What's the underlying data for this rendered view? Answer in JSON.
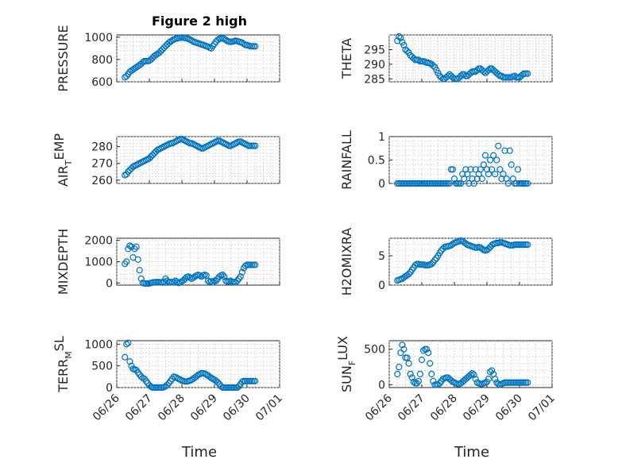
{
  "figure": {
    "title": "Figure 2 high",
    "marker_color": "#0072bd",
    "background": "#ffffff"
  },
  "chart_data": [
    {
      "type": "scatter",
      "ylabel": "PRESSURE",
      "title": "Figure 2 high",
      "xlim": [
        0,
        5
      ],
      "ylim": [
        600,
        1020
      ],
      "yticks": [
        600,
        800,
        1000
      ],
      "grid": true,
      "x": [
        0.25,
        0.3,
        0.35,
        0.4,
        0.45,
        0.5,
        0.55,
        0.6,
        0.65,
        0.7,
        0.75,
        0.8,
        0.85,
        0.9,
        0.95,
        1.0,
        1.05,
        1.1,
        1.15,
        1.2,
        1.25,
        1.3,
        1.35,
        1.4,
        1.45,
        1.5,
        1.55,
        1.6,
        1.65,
        1.7,
        1.75,
        1.8,
        1.85,
        1.9,
        1.95,
        2.0,
        2.05,
        2.1,
        2.15,
        2.2,
        2.25,
        2.3,
        2.35,
        2.4,
        2.45,
        2.5,
        2.55,
        2.6,
        2.65,
        2.7,
        2.75,
        2.8,
        2.85,
        2.9,
        2.95,
        3.0,
        3.05,
        3.1,
        3.15,
        3.2,
        3.25,
        3.3,
        3.35,
        3.4,
        3.45,
        3.5,
        3.55,
        3.6,
        3.65,
        3.7,
        3.75,
        3.8,
        3.85,
        3.9,
        3.95,
        4.0,
        4.05,
        4.1,
        4.15,
        4.2,
        4.25
      ],
      "y": [
        640,
        650,
        670,
        690,
        700,
        710,
        720,
        730,
        740,
        750,
        760,
        775,
        785,
        785,
        785,
        790,
        800,
        815,
        830,
        840,
        850,
        860,
        875,
        890,
        905,
        920,
        935,
        950,
        960,
        970,
        978,
        985,
        990,
        993,
        995,
        997,
        995,
        993,
        990,
        985,
        978,
        970,
        960,
        955,
        950,
        945,
        940,
        935,
        930,
        925,
        920,
        915,
        905,
        900,
        920,
        940,
        960,
        975,
        985,
        990,
        990,
        985,
        975,
        965,
        960,
        958,
        960,
        965,
        968,
        965,
        960,
        955,
        950,
        940,
        930,
        928,
        925,
        920,
        918,
        918,
        918
      ]
    },
    {
      "type": "scatter",
      "ylabel": "THETA",
      "xlim": [
        0,
        5
      ],
      "ylim": [
        284,
        300
      ],
      "yticks": [
        285,
        290,
        295
      ],
      "grid": true,
      "x": [
        0.25,
        0.3,
        0.35,
        0.4,
        0.45,
        0.5,
        0.55,
        0.6,
        0.65,
        0.7,
        0.75,
        0.8,
        0.85,
        0.9,
        0.95,
        1.0,
        1.05,
        1.1,
        1.15,
        1.2,
        1.25,
        1.3,
        1.35,
        1.4,
        1.45,
        1.5,
        1.55,
        1.6,
        1.65,
        1.7,
        1.75,
        1.8,
        1.85,
        1.9,
        1.95,
        2.0,
        2.05,
        2.1,
        2.15,
        2.2,
        2.25,
        2.3,
        2.35,
        2.4,
        2.45,
        2.5,
        2.55,
        2.6,
        2.65,
        2.7,
        2.75,
        2.8,
        2.85,
        2.9,
        2.95,
        3.0,
        3.05,
        3.1,
        3.15,
        3.2,
        3.25,
        3.3,
        3.35,
        3.4,
        3.45,
        3.5,
        3.55,
        3.6,
        3.65,
        3.7,
        3.75,
        3.8,
        3.85,
        3.9,
        3.95,
        4.0,
        4.05,
        4.1,
        4.15,
        4.2,
        4.25
      ],
      "y": [
        298,
        299.5,
        299,
        297.5,
        296.5,
        295,
        294.5,
        294,
        293,
        292.5,
        292,
        291.5,
        291.5,
        291.5,
        291,
        291,
        291,
        290.8,
        290.5,
        290.5,
        290.3,
        290,
        289.5,
        289,
        288,
        287,
        286,
        285.5,
        285,
        285,
        285.5,
        286,
        286.5,
        286,
        285.5,
        285,
        285,
        285,
        285.5,
        286,
        286.5,
        286.5,
        286,
        286,
        286.5,
        287,
        287.5,
        287.5,
        287.5,
        288,
        288.5,
        288.5,
        288,
        287.5,
        287,
        287.5,
        288,
        288.5,
        288.5,
        288,
        287.5,
        287,
        286.5,
        286,
        286,
        285.5,
        285.5,
        285.5,
        285.5,
        285.5,
        285.5,
        285.8,
        286,
        285.5,
        285.5,
        285.5,
        286,
        286.5,
        286.8,
        286.8,
        286.8
      ]
    },
    {
      "type": "scatter",
      "ylabel": "AIR_TEMP",
      "xlim": [
        0,
        5
      ],
      "ylim": [
        258,
        286
      ],
      "yticks": [
        260,
        270,
        280
      ],
      "grid": true,
      "x": [
        0.25,
        0.3,
        0.35,
        0.4,
        0.45,
        0.5,
        0.55,
        0.6,
        0.65,
        0.7,
        0.75,
        0.8,
        0.85,
        0.9,
        0.95,
        1.0,
        1.05,
        1.1,
        1.15,
        1.2,
        1.25,
        1.3,
        1.35,
        1.4,
        1.45,
        1.5,
        1.55,
        1.6,
        1.65,
        1.7,
        1.75,
        1.8,
        1.85,
        1.9,
        1.95,
        2.0,
        2.05,
        2.1,
        2.15,
        2.2,
        2.25,
        2.3,
        2.35,
        2.4,
        2.45,
        2.5,
        2.55,
        2.6,
        2.65,
        2.7,
        2.75,
        2.8,
        2.85,
        2.9,
        2.95,
        3.0,
        3.05,
        3.1,
        3.15,
        3.2,
        3.25,
        3.3,
        3.35,
        3.4,
        3.45,
        3.5,
        3.55,
        3.6,
        3.65,
        3.7,
        3.75,
        3.8,
        3.85,
        3.9,
        3.95,
        4.0,
        4.05,
        4.1,
        4.15,
        4.2,
        4.25
      ],
      "y": [
        263,
        263.5,
        265,
        266,
        267,
        268,
        268.5,
        269,
        269.5,
        270,
        270.5,
        271,
        271.5,
        272,
        272.5,
        273,
        274,
        275,
        276,
        277,
        278,
        278.5,
        279,
        279.5,
        280,
        280.5,
        281,
        281.5,
        282,
        282,
        282.5,
        283,
        283.5,
        284,
        284.5,
        284.5,
        284,
        283.5,
        283,
        282.5,
        282,
        282,
        281.5,
        281,
        280.5,
        280,
        279.5,
        279,
        279,
        279.5,
        280,
        280.5,
        281,
        281.5,
        282,
        282.5,
        283,
        283.5,
        283.5,
        283,
        282.5,
        282,
        281.5,
        281,
        280.5,
        280.5,
        281,
        281.5,
        282,
        282.5,
        283,
        283,
        282.5,
        282,
        281.5,
        281,
        280.5,
        280.5,
        280.5,
        280.5,
        280.5
      ]
    },
    {
      "type": "scatter",
      "ylabel": "RAINFALL",
      "xlim": [
        0,
        5
      ],
      "ylim": [
        0,
        1
      ],
      "yticks": [
        0,
        0.5,
        1
      ],
      "grid": true,
      "x": [
        0.25,
        0.3,
        0.35,
        0.4,
        0.45,
        0.5,
        0.55,
        0.6,
        0.65,
        0.7,
        0.75,
        0.8,
        0.85,
        0.9,
        0.95,
        1.0,
        1.05,
        1.1,
        1.15,
        1.2,
        1.25,
        1.3,
        1.35,
        1.4,
        1.45,
        1.5,
        1.55,
        1.6,
        1.65,
        1.7,
        1.75,
        1.8,
        1.85,
        1.9,
        1.95,
        2.0,
        2.05,
        2.1,
        2.15,
        2.2,
        2.25,
        2.3,
        2.35,
        2.4,
        2.45,
        2.5,
        2.55,
        2.6,
        2.65,
        2.7,
        2.75,
        2.8,
        2.85,
        2.9,
        2.95,
        3.0,
        3.05,
        3.1,
        3.15,
        3.2,
        3.25,
        3.3,
        3.35,
        3.4,
        3.45,
        3.5,
        3.55,
        3.6,
        3.65,
        3.7,
        3.75,
        3.8,
        3.85,
        3.9,
        3.95,
        4.0,
        4.05,
        4.1,
        4.15,
        4.2,
        4.25
      ],
      "y": [
        0,
        0,
        0,
        0,
        0,
        0,
        0,
        0,
        0,
        0,
        0,
        0,
        0,
        0,
        0,
        0,
        0,
        0,
        0,
        0,
        0,
        0,
        0,
        0,
        0,
        0,
        0,
        0,
        0,
        0,
        0,
        0,
        0,
        0.3,
        0.3,
        0.1,
        0,
        0,
        0,
        0,
        0.2,
        0.1,
        0.3,
        0.2,
        0,
        0.3,
        0.1,
        0,
        0.3,
        0.1,
        0.2,
        0.3,
        0.1,
        0.4,
        0.6,
        0.3,
        0.2,
        0.5,
        0.3,
        0.6,
        0.2,
        0.5,
        0.8,
        0.3,
        0.1,
        0.2,
        0.7,
        0.1,
        0,
        0.7,
        0.4,
        0.1,
        0,
        0,
        0.3,
        0,
        0,
        0,
        0,
        0,
        0
      ]
    },
    {
      "type": "scatter",
      "ylabel": "MIXDEPTH",
      "xlim": [
        0,
        5
      ],
      "ylim": [
        -100,
        2100
      ],
      "yticks": [
        0,
        1000,
        2000
      ],
      "grid": true,
      "x": [
        0.25,
        0.3,
        0.35,
        0.4,
        0.45,
        0.5,
        0.55,
        0.6,
        0.65,
        0.7,
        0.75,
        0.8,
        0.85,
        0.9,
        0.95,
        1.0,
        1.05,
        1.1,
        1.15,
        1.2,
        1.25,
        1.3,
        1.35,
        1.4,
        1.45,
        1.5,
        1.55,
        1.6,
        1.65,
        1.7,
        1.75,
        1.8,
        1.85,
        1.9,
        1.95,
        2.0,
        2.05,
        2.1,
        2.15,
        2.2,
        2.25,
        2.3,
        2.35,
        2.4,
        2.45,
        2.5,
        2.55,
        2.6,
        2.65,
        2.7,
        2.75,
        2.8,
        2.85,
        2.9,
        2.95,
        3.0,
        3.05,
        3.1,
        3.15,
        3.2,
        3.25,
        3.3,
        3.35,
        3.4,
        3.45,
        3.5,
        3.55,
        3.6,
        3.65,
        3.7,
        3.75,
        3.8,
        3.85,
        3.9,
        3.95,
        4.0,
        4.05,
        4.1,
        4.15,
        4.2,
        4.25
      ],
      "y": [
        900,
        1000,
        1600,
        1750,
        1700,
        1200,
        1600,
        1700,
        1100,
        600,
        200,
        0,
        -20,
        -30,
        -30,
        -20,
        0,
        20,
        30,
        40,
        40,
        40,
        30,
        20,
        60,
        200,
        100,
        50,
        30,
        40,
        30,
        100,
        50,
        0,
        30,
        80,
        120,
        200,
        280,
        300,
        250,
        200,
        250,
        300,
        350,
        380,
        350,
        300,
        350,
        380,
        350,
        100,
        50,
        80,
        30,
        100,
        100,
        200,
        300,
        350,
        380,
        300,
        100,
        60,
        80,
        100,
        50,
        40,
        30,
        100,
        200,
        300,
        500,
        700,
        800,
        850,
        850,
        850,
        850,
        850,
        850
      ]
    },
    {
      "type": "scatter",
      "ylabel": "H2OMIXRA",
      "xlim": [
        0,
        5
      ],
      "ylim": [
        0,
        8
      ],
      "yticks": [
        0,
        5
      ],
      "grid": true,
      "x": [
        0.25,
        0.3,
        0.35,
        0.4,
        0.45,
        0.5,
        0.55,
        0.6,
        0.65,
        0.7,
        0.75,
        0.8,
        0.85,
        0.9,
        0.95,
        1.0,
        1.05,
        1.1,
        1.15,
        1.2,
        1.25,
        1.3,
        1.35,
        1.4,
        1.45,
        1.5,
        1.55,
        1.6,
        1.65,
        1.7,
        1.75,
        1.8,
        1.85,
        1.9,
        1.95,
        2.0,
        2.05,
        2.1,
        2.15,
        2.2,
        2.25,
        2.3,
        2.35,
        2.4,
        2.45,
        2.5,
        2.55,
        2.6,
        2.65,
        2.7,
        2.75,
        2.8,
        2.85,
        2.9,
        2.95,
        3.0,
        3.05,
        3.1,
        3.15,
        3.2,
        3.25,
        3.3,
        3.35,
        3.4,
        3.45,
        3.5,
        3.55,
        3.6,
        3.65,
        3.7,
        3.75,
        3.8,
        3.85,
        3.9,
        3.95,
        4.0,
        4.05,
        4.1,
        4.15,
        4.2,
        4.25
      ],
      "y": [
        0.8,
        0.9,
        1.0,
        1.1,
        1.3,
        1.5,
        1.7,
        1.9,
        2.2,
        2.6,
        3.0,
        3.4,
        3.6,
        3.6,
        3.5,
        3.5,
        3.5,
        3.4,
        3.4,
        3.4,
        3.5,
        3.6,
        3.9,
        4.3,
        4.6,
        5.0,
        5.5,
        5.9,
        6.2,
        6.5,
        6.6,
        6.6,
        6.7,
        6.8,
        7.0,
        7.2,
        7.3,
        7.4,
        7.5,
        7.6,
        7.5,
        7.3,
        7.1,
        6.9,
        6.8,
        6.7,
        6.6,
        6.5,
        6.4,
        6.4,
        6.5,
        6.4,
        6.2,
        6.0,
        5.9,
        6.0,
        6.2,
        6.5,
        6.8,
        7.0,
        7.1,
        7.2,
        7.2,
        7.3,
        7.3,
        7.2,
        7.1,
        7.0,
        6.9,
        6.8,
        6.8,
        6.8,
        6.9,
        6.9,
        6.9,
        6.9,
        6.9,
        6.9,
        6.9,
        6.9,
        6.9
      ]
    },
    {
      "type": "scatter",
      "ylabel": "TERR_MSL",
      "xlabel": "Time",
      "xlim": [
        0,
        5
      ],
      "ylim": [
        0,
        1080
      ],
      "yticks": [
        0,
        500,
        1000
      ],
      "xticks": [
        "06/26",
        "06/27",
        "06/28",
        "06/29",
        "06/30",
        "07/01"
      ],
      "grid": true,
      "x": [
        0.25,
        0.3,
        0.35,
        0.4,
        0.45,
        0.5,
        0.55,
        0.6,
        0.65,
        0.7,
        0.75,
        0.8,
        0.85,
        0.9,
        0.95,
        1.0,
        1.05,
        1.1,
        1.15,
        1.2,
        1.25,
        1.3,
        1.35,
        1.4,
        1.45,
        1.5,
        1.55,
        1.6,
        1.65,
        1.7,
        1.75,
        1.8,
        1.85,
        1.9,
        1.95,
        2.0,
        2.05,
        2.1,
        2.15,
        2.2,
        2.25,
        2.3,
        2.35,
        2.4,
        2.45,
        2.5,
        2.55,
        2.6,
        2.65,
        2.7,
        2.75,
        2.8,
        2.85,
        2.9,
        2.95,
        3.0,
        3.05,
        3.1,
        3.15,
        3.2,
        3.25,
        3.3,
        3.35,
        3.4,
        3.45,
        3.5,
        3.55,
        3.6,
        3.65,
        3.7,
        3.75,
        3.8,
        3.85,
        3.9,
        3.95,
        4.0,
        4.05,
        4.1,
        4.15,
        4.2,
        4.25
      ],
      "y": [
        700,
        1000,
        1030,
        600,
        500,
        430,
        420,
        400,
        350,
        300,
        250,
        220,
        200,
        150,
        100,
        50,
        20,
        0,
        0,
        0,
        0,
        0,
        0,
        0,
        10,
        30,
        60,
        100,
        150,
        200,
        250,
        240,
        220,
        200,
        180,
        160,
        150,
        140,
        140,
        150,
        160,
        180,
        200,
        230,
        260,
        290,
        310,
        330,
        330,
        320,
        300,
        280,
        250,
        220,
        200,
        180,
        150,
        120,
        80,
        30,
        0,
        0,
        0,
        0,
        0,
        0,
        0,
        0,
        0,
        0,
        30,
        80,
        130,
        150,
        150,
        150,
        150,
        150,
        150,
        150,
        150
      ]
    },
    {
      "type": "scatter",
      "ylabel": "SUN_FLUX",
      "xlabel": "Time",
      "xlim": [
        0,
        5
      ],
      "ylim": [
        -40,
        620
      ],
      "yticks": [
        0,
        500
      ],
      "xticks": [
        "06/26",
        "06/27",
        "06/28",
        "06/29",
        "06/30",
        "07/01"
      ],
      "grid": true,
      "x": [
        0.25,
        0.3,
        0.35,
        0.4,
        0.45,
        0.5,
        0.55,
        0.6,
        0.65,
        0.7,
        0.75,
        0.8,
        0.85,
        0.9,
        0.95,
        1.0,
        1.05,
        1.1,
        1.15,
        1.2,
        1.25,
        1.3,
        1.35,
        1.4,
        1.45,
        1.5,
        1.55,
        1.6,
        1.65,
        1.7,
        1.75,
        1.8,
        1.85,
        1.9,
        1.95,
        2.0,
        2.05,
        2.1,
        2.15,
        2.2,
        2.25,
        2.3,
        2.35,
        2.4,
        2.45,
        2.5,
        2.55,
        2.6,
        2.65,
        2.7,
        2.75,
        2.8,
        2.85,
        2.9,
        2.95,
        3.0,
        3.05,
        3.1,
        3.15,
        3.2,
        3.25,
        3.3,
        3.35,
        3.4,
        3.45,
        3.5,
        3.55,
        3.6,
        3.65,
        3.7,
        3.75,
        3.8,
        3.85,
        3.9,
        3.95,
        4.0,
        4.05,
        4.1,
        4.15,
        4.2,
        4.25
      ],
      "y": [
        150,
        250,
        450,
        560,
        500,
        380,
        380,
        300,
        150,
        100,
        40,
        20,
        20,
        50,
        150,
        350,
        480,
        500,
        500,
        450,
        300,
        150,
        50,
        0,
        0,
        0,
        20,
        50,
        80,
        90,
        100,
        100,
        80,
        60,
        40,
        30,
        20,
        10,
        10,
        20,
        40,
        60,
        80,
        100,
        120,
        140,
        160,
        140,
        80,
        30,
        20,
        10,
        10,
        20,
        30,
        40,
        80,
        180,
        200,
        150,
        80,
        30,
        10,
        0,
        10,
        20,
        30,
        30,
        30,
        30,
        30,
        30,
        30,
        30,
        30,
        30,
        30,
        30,
        30,
        30,
        30
      ]
    }
  ]
}
